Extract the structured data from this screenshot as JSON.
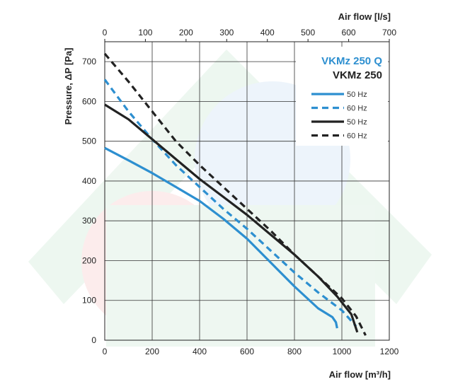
{
  "chart_data": {
    "type": "line",
    "xlabel": "Air flow [m³/h]",
    "x2label": "Air flow [l/s]",
    "ylabel": "Pressure, ΔP [Pa]",
    "xlim": [
      0,
      1200
    ],
    "x2lim": [
      0,
      700
    ],
    "ylim": [
      0,
      750
    ],
    "x_ticks": [
      "0",
      "200",
      "400",
      "600",
      "800",
      "1000",
      "1200"
    ],
    "x2_ticks": [
      "0",
      "100",
      "200",
      "300",
      "400",
      "500",
      "600",
      "700"
    ],
    "y_ticks": [
      "0",
      "100",
      "200",
      "300",
      "400",
      "500",
      "600",
      "700"
    ],
    "grid": true,
    "legend_position": "top-right",
    "legend_groups": [
      {
        "title": "VKMz 250 Q",
        "color": "#2d8fd0",
        "entries": [
          "50 Hz",
          "60 Hz"
        ]
      },
      {
        "title": "VKMz 250",
        "color": "#222222",
        "entries": [
          "50 Hz",
          "60 Hz"
        ]
      }
    ],
    "series": [
      {
        "group": "VKMz 250 Q",
        "name": "50 Hz",
        "color": "#2d8fd0",
        "dash": "solid",
        "x": [
          0,
          100,
          200,
          300,
          400,
          500,
          600,
          700,
          800,
          900,
          960,
          975,
          980
        ],
        "y": [
          483,
          452,
          420,
          385,
          350,
          305,
          255,
          195,
          135,
          80,
          58,
          45,
          30
        ]
      },
      {
        "group": "VKMz 250 Q",
        "name": "60 Hz",
        "color": "#2d8fd0",
        "dash": "dashed",
        "x": [
          0,
          100,
          200,
          300,
          400,
          500,
          600,
          700,
          800,
          900,
          1000,
          1060
        ],
        "y": [
          655,
          575,
          505,
          440,
          385,
          330,
          280,
          225,
          170,
          120,
          75,
          35
        ]
      },
      {
        "group": "VKMz 250",
        "name": "50 Hz",
        "color": "#222222",
        "dash": "solid",
        "x": [
          0,
          100,
          200,
          300,
          400,
          500,
          600,
          700,
          800,
          900,
          980,
          1040,
          1065
        ],
        "y": [
          592,
          555,
          505,
          455,
          405,
          360,
          315,
          265,
          215,
          160,
          110,
          65,
          20
        ]
      },
      {
        "group": "VKMz 250",
        "name": "60 Hz",
        "color": "#222222",
        "dash": "dashed",
        "x": [
          0,
          100,
          200,
          300,
          400,
          500,
          600,
          700,
          800,
          900,
          1000,
          1060,
          1100
        ],
        "y": [
          720,
          650,
          575,
          500,
          440,
          385,
          330,
          275,
          215,
          160,
          105,
          60,
          12
        ]
      }
    ]
  }
}
